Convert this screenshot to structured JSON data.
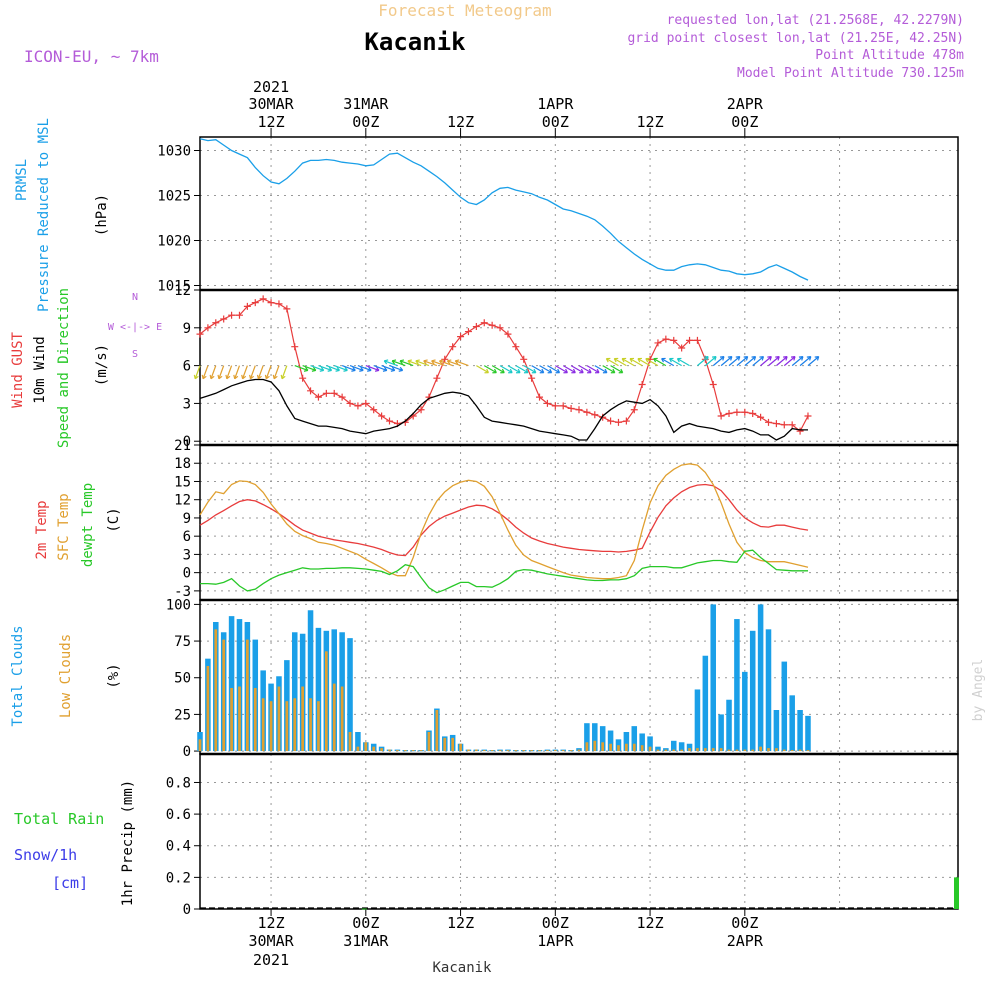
{
  "header": {
    "title_top": "Forecast Meteogram",
    "title_main": "Kacanik",
    "model": "ICON-EU, ~ 7km",
    "requested": "requested lon,lat (21.2568E, 42.2279N)",
    "grid_point": "grid point closest lon,lat (21.25E, 42.25N)",
    "point_alt": "Point Altitude 478m",
    "model_alt": "Model Point Altitude 730.125m",
    "bottom_place": "Kacanik",
    "watermark": "by Angel"
  },
  "colors": {
    "pressure": "#1a9fe8",
    "gust": "#e83c3c",
    "wind": "#000000",
    "temp": "#e83c3c",
    "sfc": "#e0a030",
    "dew": "#28c828",
    "total_clouds": "#1a9fe8",
    "low_clouds": "#e0a030",
    "rain": "#28c828",
    "snow": "#3c3ce8",
    "meta": "#b45cd8"
  },
  "time_axis": {
    "hours_start": 3,
    "hours_end": 99,
    "top_ticks": [
      {
        "hour": 12,
        "line1": "30MAR",
        "line2": "12Z",
        "line0": "2021"
      },
      {
        "hour": 24,
        "line1": "31MAR",
        "line2": "00Z"
      },
      {
        "hour": 36,
        "line1": "",
        "line2": "12Z"
      },
      {
        "hour": 48,
        "line1": "1APR",
        "line2": "00Z"
      },
      {
        "hour": 60,
        "line1": "",
        "line2": "12Z"
      },
      {
        "hour": 72,
        "line1": "2APR",
        "line2": "00Z"
      }
    ],
    "bottom_ticks": [
      {
        "hour": 12,
        "line1": "12Z",
        "line2": "30MAR",
        "line3": "2021"
      },
      {
        "hour": 24,
        "line1": "00Z",
        "line2": "31MAR"
      },
      {
        "hour": 36,
        "line1": "12Z",
        "line2": ""
      },
      {
        "hour": 48,
        "line1": "00Z",
        "line2": "1APR"
      },
      {
        "hour": 60,
        "line1": "12Z",
        "line2": ""
      },
      {
        "hour": 72,
        "line1": "00Z",
        "line2": "2APR"
      }
    ]
  },
  "panels": {
    "pressure": {
      "label1": "PRMSL",
      "label2": "Pressure Reduced to MSL",
      "unit": "(hPa)",
      "ticks": [
        1015,
        1020,
        1025,
        1030
      ],
      "ylim": [
        1014.5,
        1031.5
      ]
    },
    "wind": {
      "label1": "Wind GUST",
      "label2": "10m Wind",
      "label3": "Speed and Direction",
      "unit": "(m/s)",
      "compass": "W <-|-> E",
      "compass_n": "N",
      "compass_s": "S",
      "ticks": [
        0,
        3,
        6,
        9,
        12
      ],
      "ylim": [
        -0.3,
        12
      ]
    },
    "temp": {
      "label1": "2m Temp",
      "label2": "SFC Temp",
      "label3": "dewpt Temp",
      "unit": "(C)",
      "ticks": [
        -3,
        0,
        3,
        6,
        9,
        12,
        15,
        18,
        21
      ],
      "ylim": [
        -4.5,
        21
      ]
    },
    "clouds": {
      "label1": "Total Clouds",
      "label2": "Low Clouds",
      "unit": "(%)",
      "ticks": [
        0,
        25,
        50,
        75,
        100
      ],
      "ylim": [
        -2,
        103
      ]
    },
    "precip": {
      "label_rain": "Total Rain",
      "label_snow": "Snow/1h",
      "label_cm": "[cm]",
      "label_axis": "1hr Precip (mm)",
      "ticks": [
        0,
        0.2,
        0.4,
        0.6,
        0.8
      ],
      "tick_labels": [
        "0",
        "0.2",
        "0.4",
        "0.6",
        "0.8"
      ],
      "ylim": [
        0,
        0.98
      ]
    }
  },
  "chart_data": [
    {
      "type": "line",
      "title": "PRMSL Pressure Reduced to MSL",
      "ylabel": "hPa",
      "x": [
        3,
        4,
        5,
        6,
        7,
        8,
        9,
        10,
        11,
        12,
        13,
        14,
        15,
        16,
        17,
        18,
        19,
        20,
        21,
        22,
        23,
        24,
        25,
        26,
        27,
        28,
        29,
        30,
        31,
        32,
        33,
        34,
        35,
        36,
        37,
        38,
        39,
        40,
        41,
        42,
        43,
        44,
        45,
        46,
        47,
        48,
        49,
        50,
        51,
        52,
        53,
        54,
        55,
        56,
        57,
        58,
        59,
        60,
        61,
        62,
        63,
        64,
        65,
        66,
        67,
        68,
        69,
        70,
        71,
        72,
        73,
        74,
        75,
        76,
        77,
        78,
        79,
        80
      ],
      "values": [
        1031.3,
        1031.1,
        1031.2,
        1030.6,
        1030.0,
        1029.6,
        1029.2,
        1028.1,
        1027.2,
        1026.5,
        1026.3,
        1026.9,
        1027.7,
        1028.6,
        1028.9,
        1028.9,
        1029.0,
        1028.9,
        1028.7,
        1028.6,
        1028.5,
        1028.3,
        1028.4,
        1029.0,
        1029.6,
        1029.7,
        1029.2,
        1028.7,
        1028.3,
        1027.7,
        1027.1,
        1026.4,
        1025.6,
        1024.8,
        1024.2,
        1024.0,
        1024.5,
        1025.3,
        1025.8,
        1025.9,
        1025.6,
        1025.4,
        1025.2,
        1024.8,
        1024.5,
        1024.0,
        1023.5,
        1023.3,
        1023.0,
        1022.7,
        1022.3,
        1021.6,
        1020.8,
        1019.9,
        1019.2,
        1018.5,
        1017.9,
        1017.4,
        1016.9,
        1016.7,
        1016.7,
        1017.1,
        1017.3,
        1017.4,
        1017.3,
        1017.0,
        1016.7,
        1016.6,
        1016.3,
        1016.2,
        1016.3,
        1016.5,
        1017.0,
        1017.3,
        1016.9,
        1016.5,
        1016.0,
        1015.6
      ],
      "ylim": [
        1014.5,
        1031.5
      ]
    },
    {
      "type": "line",
      "title": "Wind GUST and 10m Wind",
      "ylabel": "m/s",
      "x": [
        3,
        4,
        5,
        6,
        7,
        8,
        9,
        10,
        11,
        12,
        13,
        14,
        15,
        16,
        17,
        18,
        19,
        20,
        21,
        22,
        23,
        24,
        25,
        26,
        27,
        28,
        29,
        30,
        31,
        32,
        33,
        34,
        35,
        36,
        37,
        38,
        39,
        40,
        41,
        42,
        43,
        44,
        45,
        46,
        47,
        48,
        49,
        50,
        51,
        52,
        53,
        54,
        55,
        56,
        57,
        58,
        59,
        60,
        61,
        62,
        63,
        64,
        65,
        66,
        67,
        68,
        69,
        70,
        71,
        72,
        73,
        74,
        75,
        76,
        77,
        78,
        79,
        80
      ],
      "series": [
        {
          "name": "Wind GUST",
          "values": [
            8.5,
            9.0,
            9.4,
            9.7,
            10.0,
            10.0,
            10.7,
            11.0,
            11.3,
            11.0,
            10.9,
            10.5,
            7.5,
            5.0,
            4.0,
            3.5,
            3.8,
            3.8,
            3.5,
            3.0,
            2.8,
            3.0,
            2.5,
            2.0,
            1.6,
            1.4,
            1.5,
            2.0,
            2.5,
            3.5,
            5.0,
            6.5,
            7.5,
            8.3,
            8.7,
            9.1,
            9.4,
            9.2,
            9.0,
            8.5,
            7.5,
            6.5,
            5.0,
            3.5,
            3.0,
            2.8,
            2.8,
            2.6,
            2.5,
            2.3,
            2.1,
            1.9,
            1.6,
            1.5,
            1.6,
            2.5,
            4.5,
            6.5,
            7.8,
            8.1,
            8.0,
            7.4,
            8.0,
            8.0,
            6.5,
            4.5,
            2.0,
            2.2,
            2.3,
            2.3,
            2.2,
            1.9,
            1.5,
            1.4,
            1.3,
            1.3,
            0.8,
            2.0
          ]
        },
        {
          "name": "10m Wind",
          "values": [
            3.4,
            3.6,
            3.8,
            4.1,
            4.4,
            4.6,
            4.8,
            4.9,
            4.9,
            4.7,
            4.0,
            2.8,
            1.8,
            1.6,
            1.4,
            1.2,
            1.2,
            1.1,
            1.0,
            0.8,
            0.7,
            0.6,
            0.8,
            0.9,
            1.0,
            1.2,
            1.6,
            2.2,
            2.9,
            3.4,
            3.6,
            3.8,
            3.9,
            3.8,
            3.6,
            2.8,
            1.9,
            1.6,
            1.5,
            1.4,
            1.3,
            1.2,
            1.0,
            0.8,
            0.7,
            0.6,
            0.5,
            0.4,
            0.1,
            0.1,
            1.0,
            2.0,
            2.5,
            2.9,
            3.2,
            3.1,
            3.0,
            3.3,
            2.8,
            2.0,
            0.7,
            1.2,
            1.4,
            1.2,
            1.1,
            1.0,
            0.8,
            0.7,
            0.9,
            1.0,
            0.8,
            0.5,
            0.5,
            0.1,
            0.4,
            1.0,
            0.9,
            0.9
          ]
        }
      ],
      "ylim": [
        -0.3,
        12
      ]
    },
    {
      "type": "line",
      "title": "2m Temp, SFC Temp, dewpt Temp",
      "ylabel": "C",
      "x": [
        3,
        4,
        5,
        6,
        7,
        8,
        9,
        10,
        11,
        12,
        13,
        14,
        15,
        16,
        17,
        18,
        19,
        20,
        21,
        22,
        23,
        24,
        25,
        26,
        27,
        28,
        29,
        30,
        31,
        32,
        33,
        34,
        35,
        36,
        37,
        38,
        39,
        40,
        41,
        42,
        43,
        44,
        45,
        46,
        47,
        48,
        49,
        50,
        51,
        52,
        53,
        54,
        55,
        56,
        57,
        58,
        59,
        60,
        61,
        62,
        63,
        64,
        65,
        66,
        67,
        68,
        69,
        70,
        71,
        72,
        73,
        74,
        75,
        76,
        77,
        78,
        79,
        80
      ],
      "series": [
        {
          "name": "2m Temp",
          "values": [
            7.8,
            8.6,
            9.5,
            10.2,
            11.0,
            11.7,
            12.0,
            11.8,
            11.2,
            10.5,
            9.7,
            8.8,
            7.8,
            7.0,
            6.5,
            6.0,
            5.7,
            5.4,
            5.2,
            5.0,
            4.8,
            4.5,
            4.2,
            3.8,
            3.3,
            2.9,
            2.8,
            4.2,
            6.2,
            7.6,
            8.6,
            9.3,
            9.8,
            10.3,
            10.8,
            11.1,
            11.0,
            10.5,
            9.7,
            8.7,
            7.5,
            6.5,
            5.7,
            5.2,
            4.8,
            4.5,
            4.2,
            4.0,
            3.8,
            3.7,
            3.6,
            3.5,
            3.5,
            3.4,
            3.5,
            3.7,
            4.0,
            6.7,
            9.1,
            11.0,
            12.3,
            13.3,
            14.0,
            14.4,
            14.5,
            14.3,
            13.5,
            12.0,
            10.3,
            9.0,
            8.2,
            7.6,
            7.5,
            7.8,
            7.8,
            7.5,
            7.2,
            7.0
          ]
        },
        {
          "name": "SFC Temp",
          "values": [
            9.5,
            11.6,
            13.3,
            13.0,
            14.5,
            15.1,
            15.0,
            14.5,
            13.2,
            11.3,
            9.7,
            8.0,
            6.8,
            6.1,
            5.6,
            5.0,
            4.8,
            4.5,
            4.0,
            3.5,
            3.0,
            2.2,
            1.5,
            0.8,
            0.0,
            -0.5,
            -0.5,
            2.5,
            6.5,
            9.5,
            11.8,
            13.3,
            14.3,
            14.9,
            15.2,
            15.0,
            14.2,
            12.5,
            9.8,
            7.0,
            4.5,
            2.9,
            2.0,
            1.5,
            1.0,
            0.5,
            0.0,
            -0.4,
            -0.6,
            -0.8,
            -0.9,
            -1.0,
            -1.0,
            -0.8,
            -0.5,
            2.0,
            7.0,
            11.5,
            14.3,
            16.0,
            17.0,
            17.7,
            17.9,
            17.7,
            16.5,
            14.5,
            11.5,
            8.0,
            5.0,
            3.3,
            2.5,
            2.0,
            1.8,
            1.8,
            1.8,
            1.5,
            1.2,
            0.9
          ]
        },
        {
          "name": "dewpt Temp",
          "values": [
            -1.8,
            -1.8,
            -1.9,
            -1.6,
            -1.0,
            -2.2,
            -3.0,
            -2.7,
            -1.8,
            -1.0,
            -0.4,
            0.0,
            0.4,
            0.8,
            0.6,
            0.6,
            0.7,
            0.7,
            0.8,
            0.8,
            0.7,
            0.6,
            0.4,
            0.2,
            -0.3,
            0.3,
            1.3,
            1.0,
            -0.8,
            -2.5,
            -3.3,
            -2.8,
            -2.2,
            -1.6,
            -1.6,
            -2.3,
            -2.3,
            -2.4,
            -1.8,
            -1.0,
            0.2,
            0.5,
            0.4,
            0.1,
            -0.2,
            -0.4,
            -0.6,
            -0.8,
            -1.0,
            -1.2,
            -1.3,
            -1.3,
            -1.2,
            -1.2,
            -1.0,
            -0.5,
            0.7,
            1.0,
            1.0,
            1.0,
            0.8,
            0.8,
            1.2,
            1.6,
            1.8,
            2.0,
            2.0,
            1.8,
            1.7,
            3.5,
            3.7,
            2.5,
            1.5,
            0.5,
            0.4,
            0.3,
            0.3,
            0.3
          ]
        }
      ],
      "ylim": [
        -4.5,
        21
      ]
    },
    {
      "type": "bar",
      "title": "Total Clouds and Low Clouds",
      "ylabel": "%",
      "x": [
        3,
        4,
        5,
        6,
        7,
        8,
        9,
        10,
        11,
        12,
        13,
        14,
        15,
        16,
        17,
        18,
        19,
        20,
        21,
        22,
        23,
        24,
        25,
        26,
        27,
        28,
        29,
        30,
        31,
        32,
        33,
        34,
        35,
        36,
        37,
        38,
        39,
        40,
        41,
        42,
        43,
        44,
        45,
        46,
        47,
        48,
        49,
        50,
        51,
        52,
        53,
        54,
        55,
        56,
        57,
        58,
        59,
        60,
        61,
        62,
        63,
        64,
        65,
        66,
        67,
        68,
        69,
        70,
        71,
        72,
        73,
        74,
        75,
        76,
        77,
        78,
        79,
        80
      ],
      "series": [
        {
          "name": "Total Clouds",
          "values": [
            13,
            63,
            88,
            81,
            92,
            90,
            88,
            76,
            55,
            46,
            51,
            62,
            81,
            80,
            96,
            84,
            82,
            83,
            81,
            77,
            13,
            6,
            5,
            3,
            1,
            1,
            0,
            0,
            0,
            14,
            29,
            10,
            11,
            5,
            1,
            1,
            1,
            0,
            1,
            1,
            0,
            0,
            0,
            0,
            1,
            1,
            1,
            0,
            2,
            19,
            19,
            17,
            14,
            8,
            13,
            17,
            12,
            10,
            3,
            2,
            7,
            6,
            5,
            42,
            65,
            100,
            25,
            35,
            90,
            54,
            82,
            100,
            83,
            28,
            61,
            38,
            28,
            24
          ]
        },
        {
          "name": "Low Clouds",
          "values": [
            8,
            58,
            83,
            76,
            43,
            44,
            76,
            43,
            36,
            34,
            44,
            34,
            36,
            44,
            36,
            34,
            68,
            46,
            44,
            13,
            3,
            6,
            3,
            2,
            1,
            0,
            0,
            0,
            0,
            13,
            28,
            9,
            9,
            5,
            1,
            1,
            0,
            0,
            0,
            0,
            0,
            0,
            0,
            0,
            0,
            0,
            0,
            0,
            1,
            6,
            7,
            6,
            5,
            4,
            5,
            5,
            4,
            3,
            1,
            1,
            1,
            1,
            2,
            2,
            2,
            2,
            2,
            1,
            1,
            1,
            1,
            3,
            2,
            2,
            1,
            0,
            1,
            0
          ]
        }
      ],
      "ylim": [
        -2,
        103
      ]
    },
    {
      "type": "bar",
      "title": "1hr Precip",
      "ylabel": "1hr Precip (mm)",
      "x": [
        24,
        99
      ],
      "series": [
        {
          "name": "Total Rain",
          "values": [
            0.003,
            0.2
          ]
        }
      ],
      "ylim": [
        0,
        0.98
      ]
    }
  ]
}
